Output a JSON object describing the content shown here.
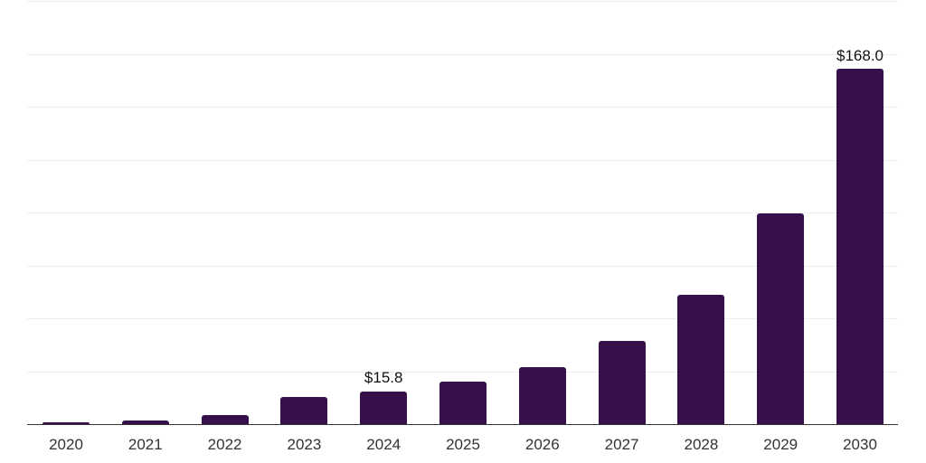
{
  "chart_data": {
    "type": "bar",
    "categories": [
      "2020",
      "2021",
      "2022",
      "2023",
      "2024",
      "2025",
      "2026",
      "2027",
      "2028",
      "2029",
      "2030"
    ],
    "values": [
      1.0,
      2.0,
      4.7,
      12.9,
      15.8,
      20.4,
      27.2,
      39.7,
      61.5,
      99.8,
      168.0
    ],
    "annotations": [
      {
        "category": "2024",
        "text": "$15.8"
      },
      {
        "category": "2030",
        "text": "$168.0"
      }
    ],
    "xlabel": "",
    "ylabel": "",
    "ylim": [
      0,
      200
    ],
    "gridline_interval": 25,
    "grid": "horizontal",
    "legend_position": "none",
    "y_axis_tick_labels_visible": false,
    "colors": {
      "bar": "#35104B",
      "axis_line": "#333333",
      "gridline": "#ededed",
      "tick_label": "#333333",
      "data_label": "#111111",
      "background": "#ffffff"
    }
  }
}
